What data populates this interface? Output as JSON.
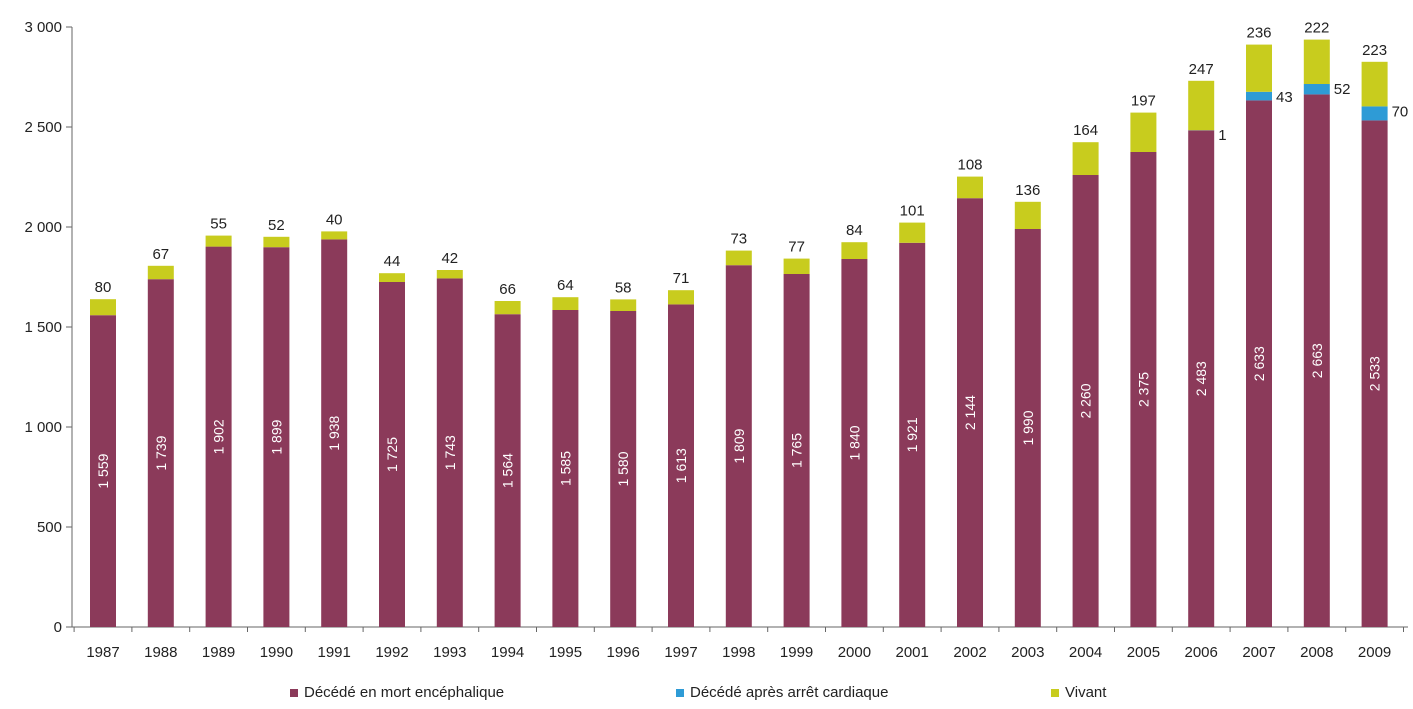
{
  "chart_data": {
    "type": "bar",
    "stacked": true,
    "title": "",
    "xlabel": "",
    "ylabel": "",
    "ylim": [
      0,
      3000
    ],
    "yticks": [
      0,
      500,
      1000,
      1500,
      2000,
      2500,
      3000
    ],
    "ytick_labels": [
      "0",
      "500",
      "1 000",
      "1 500",
      "2 000",
      "2 500",
      "3 000"
    ],
    "grid": false,
    "legend_position": "bottom",
    "categories": [
      "1987",
      "1988",
      "1989",
      "1990",
      "1991",
      "1992",
      "1993",
      "1994",
      "1995",
      "1996",
      "1997",
      "1998",
      "1999",
      "2000",
      "2001",
      "2002",
      "2003",
      "2004",
      "2005",
      "2006",
      "2007",
      "2008",
      "2009"
    ],
    "series": [
      {
        "name": "Décédé en mort encéphalique",
        "color": "#8B3A5A",
        "values": [
          1559,
          1739,
          1902,
          1899,
          1938,
          1725,
          1743,
          1564,
          1585,
          1580,
          1613,
          1809,
          1765,
          1840,
          1921,
          2144,
          1990,
          2260,
          2375,
          2483,
          2633,
          2663,
          2533
        ],
        "labels": [
          "1 559",
          "1 739",
          "1 902",
          "1 899",
          "1 938",
          "1 725",
          "1 743",
          "1 564",
          "1 585",
          "1 580",
          "1 613",
          "1 809",
          "1 765",
          "1 840",
          "1 921",
          "2 144",
          "1 990",
          "2 260",
          "2 375",
          "2 483",
          "2 633",
          "2 663",
          "2 533"
        ]
      },
      {
        "name": "Décédé après arrêt cardiaque",
        "color": "#2E9BD6",
        "values": [
          0,
          0,
          0,
          0,
          0,
          0,
          0,
          0,
          0,
          0,
          0,
          0,
          0,
          0,
          0,
          0,
          0,
          0,
          0,
          1,
          43,
          52,
          70
        ],
        "labels": [
          "",
          "",
          "",
          "",
          "",
          "",
          "",
          "",
          "",
          "",
          "",
          "",
          "",
          "",
          "",
          "",
          "",
          "",
          "",
          "1",
          "43",
          "52",
          "70"
        ]
      },
      {
        "name": "Vivant",
        "color": "#C8CC1E",
        "values": [
          80,
          67,
          55,
          52,
          40,
          44,
          42,
          66,
          64,
          58,
          71,
          73,
          77,
          84,
          101,
          108,
          136,
          164,
          197,
          247,
          236,
          222,
          223
        ],
        "labels": [
          "80",
          "67",
          "55",
          "52",
          "40",
          "44",
          "42",
          "66",
          "64",
          "58",
          "71",
          "73",
          "77",
          "84",
          "101",
          "108",
          "136",
          "164",
          "197",
          "247",
          "236",
          "222",
          "223"
        ]
      }
    ]
  }
}
